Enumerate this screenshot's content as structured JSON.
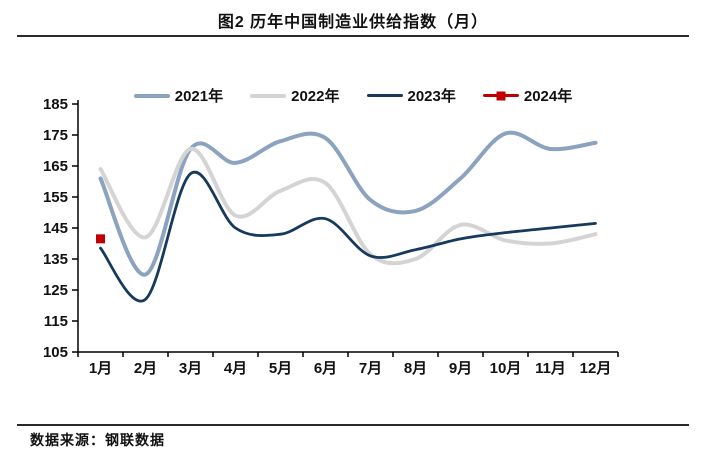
{
  "page": {
    "title": "图2 历年中国制造业供给指数（月）",
    "source": "数据来源：钢联数据"
  },
  "chart_data": {
    "type": "line",
    "title": "图2 历年中国制造业供给指数（月）",
    "categories": [
      "1月",
      "2月",
      "3月",
      "4月",
      "5月",
      "6月",
      "7月",
      "8月",
      "9月",
      "10月",
      "11月",
      "12月"
    ],
    "xlabel": "",
    "ylabel": "",
    "ylim": [
      105,
      185
    ],
    "y_ticks": [
      105,
      115,
      125,
      135,
      145,
      155,
      165,
      175,
      185
    ],
    "grid": false,
    "legend_position": "top",
    "axis_color": "#000000",
    "series": [
      {
        "name": "2021年",
        "color": "#8CA3C0",
        "line_width": 4,
        "values": [
          161,
          130,
          170.5,
          166,
          173,
          174,
          154,
          150.5,
          161,
          175.5,
          170.5,
          172.5
        ]
      },
      {
        "name": "2022年",
        "color": "#D4D4D4",
        "line_width": 4,
        "values": [
          164,
          142,
          170.5,
          149,
          157,
          159.5,
          136.5,
          135,
          146,
          141,
          140,
          143
        ]
      },
      {
        "name": "2023年",
        "color": "#17395C",
        "line_width": 2.8,
        "values": [
          138.5,
          122,
          162.5,
          145,
          143,
          148,
          136,
          138,
          141.5,
          143.5,
          145,
          146.5
        ]
      },
      {
        "name": "2024年",
        "color": "#C00000",
        "line_width": 3,
        "marker": "square",
        "values": [
          141.5
        ]
      }
    ]
  }
}
